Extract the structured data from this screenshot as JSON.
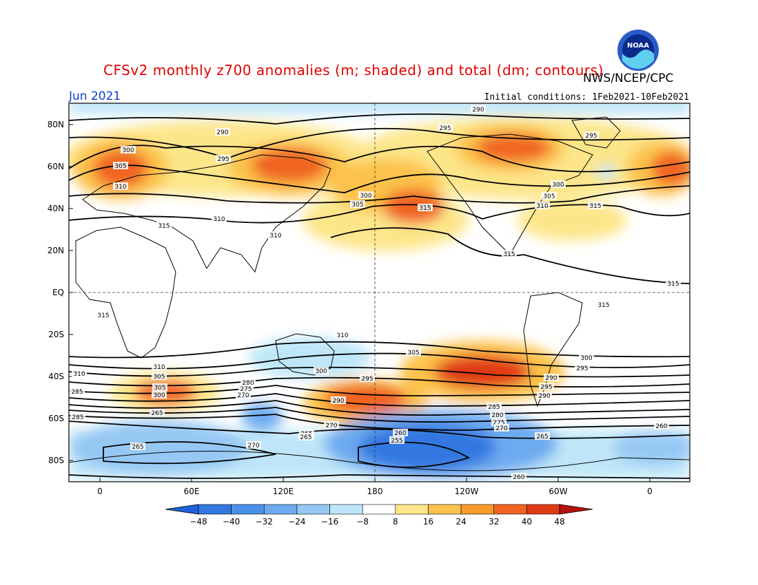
{
  "title": "CFSv2 monthly z700 anomalies (m; shaded) and total (dm; contours)",
  "organization": "NWS/NCEP/CPC",
  "logo_text": "NOAA",
  "period": "Jun 2021",
  "initial_conditions": "Initial conditions: 1Feb2021-10Feb2021",
  "lat_labels": [
    "80N",
    "60N",
    "40N",
    "20N",
    "EQ",
    "20S",
    "40S",
    "60S",
    "80S"
  ],
  "lon_labels": [
    "0",
    "60E",
    "120E",
    "180",
    "120W",
    "60W",
    "0"
  ],
  "colorbar": {
    "ticks": [
      "-48",
      "-40",
      "-32",
      "-24",
      "-16",
      "-8",
      "8",
      "16",
      "24",
      "32",
      "40",
      "48"
    ],
    "colors": [
      "#1e64d8",
      "#3278e0",
      "#4a90e8",
      "#6eaaf0",
      "#96c8f4",
      "#bee6f8",
      "#ffffff",
      "#fde68a",
      "#fcc24c",
      "#f89a2c",
      "#f06420",
      "#e03a14",
      "#b41410"
    ]
  },
  "contour_labels": [
    {
      "text": "290"
    },
    {
      "text": "290"
    },
    {
      "text": "295"
    },
    {
      "text": "295"
    },
    {
      "text": "295"
    },
    {
      "text": "300"
    },
    {
      "text": "305"
    },
    {
      "text": "310"
    },
    {
      "text": "300"
    },
    {
      "text": "305"
    },
    {
      "text": "315"
    },
    {
      "text": "300"
    },
    {
      "text": "305"
    },
    {
      "text": "310"
    },
    {
      "text": "315"
    },
    {
      "text": "315"
    },
    {
      "text": "310"
    },
    {
      "text": "310"
    },
    {
      "text": "315"
    },
    {
      "text": "315"
    },
    {
      "text": "315"
    },
    {
      "text": "315"
    },
    {
      "text": "310"
    },
    {
      "text": "305"
    },
    {
      "text": "300"
    },
    {
      "text": "295"
    },
    {
      "text": "310"
    },
    {
      "text": "305"
    },
    {
      "text": "300"
    },
    {
      "text": "295"
    },
    {
      "text": "290"
    },
    {
      "text": "310"
    },
    {
      "text": "305"
    },
    {
      "text": "300"
    },
    {
      "text": "295"
    },
    {
      "text": "290"
    },
    {
      "text": "285"
    },
    {
      "text": "280"
    },
    {
      "text": "275"
    },
    {
      "text": "270"
    },
    {
      "text": "265"
    },
    {
      "text": "285"
    },
    {
      "text": "290"
    },
    {
      "text": "285"
    },
    {
      "text": "280"
    },
    {
      "text": "275"
    },
    {
      "text": "270"
    },
    {
      "text": "270"
    },
    {
      "text": "265"
    },
    {
      "text": "265"
    },
    {
      "text": "260"
    },
    {
      "text": "255"
    },
    {
      "text": "265"
    },
    {
      "text": "260"
    },
    {
      "text": "260"
    },
    {
      "text": "265"
    },
    {
      "text": "270"
    }
  ]
}
